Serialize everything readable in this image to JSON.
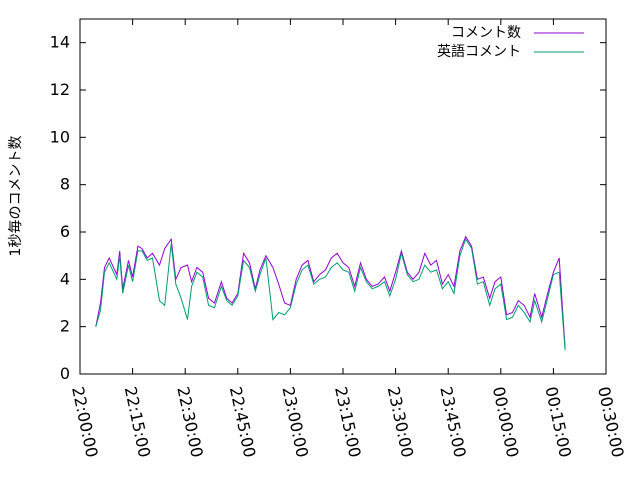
{
  "chart_data": {
    "type": "line",
    "title": "",
    "xlabel": "",
    "ylabel": "1秒毎のコメント数",
    "ylim": [
      0,
      15
    ],
    "xlim": [
      "22:00:00",
      "00:30:00"
    ],
    "y_ticks": [
      0,
      2,
      4,
      6,
      8,
      10,
      12,
      14
    ],
    "x_ticks": [
      "22:00:00",
      "22:15:00",
      "22:30:00",
      "22:45:00",
      "23:00:00",
      "23:15:00",
      "23:30:00",
      "23:45:00",
      "00:00:00",
      "00:15:00",
      "00:30:00"
    ],
    "grid": false,
    "legend_position": "top-right",
    "x": [
      "22:04:30",
      "22:05:50",
      "22:07:00",
      "22:08:20",
      "22:10:30",
      "22:11:20",
      "22:12:10",
      "22:13:50",
      "22:15:00",
      "22:16:30",
      "22:17:40",
      "22:19:10",
      "22:20:40",
      "22:22:40",
      "22:24:10",
      "22:26:00",
      "22:27:20",
      "22:28:50",
      "22:30:40",
      "22:31:50",
      "22:33:20",
      "22:35:00",
      "22:36:40",
      "22:38:20",
      "22:40:20",
      "22:41:50",
      "22:43:20",
      "22:45:00",
      "22:46:40",
      "22:48:20",
      "22:50:00",
      "22:51:20",
      "22:53:00",
      "22:55:00",
      "22:56:40",
      "22:58:20",
      "23:00:00",
      "23:01:40",
      "23:03:20",
      "23:05:00",
      "23:06:40",
      "23:08:20",
      "23:10:00",
      "23:11:40",
      "23:13:20",
      "23:15:00",
      "23:16:40",
      "23:18:20",
      "23:20:00",
      "23:21:40",
      "23:23:20",
      "23:25:00",
      "23:26:50",
      "23:28:20",
      "23:30:00",
      "23:31:40",
      "23:33:20",
      "23:35:00",
      "23:36:40",
      "23:38:20",
      "23:40:00",
      "23:41:40",
      "23:43:20",
      "23:45:00",
      "23:46:40",
      "23:48:20",
      "23:50:00",
      "23:51:40",
      "23:53:20",
      "23:55:00",
      "23:56:50",
      "23:58:20",
      "00:00:00",
      "00:01:40",
      "00:03:20",
      "00:05:00",
      "00:06:40",
      "00:08:20",
      "00:09:40",
      "00:11:40",
      "00:13:20",
      "00:15:00",
      "00:16:40",
      "00:18:20"
    ],
    "series": [
      {
        "name": "コメント数",
        "color": "#9400d3",
        "values": [
          2.0,
          3.0,
          4.5,
          4.9,
          4.2,
          5.2,
          3.6,
          4.8,
          4.1,
          5.4,
          5.3,
          4.9,
          5.1,
          4.6,
          5.3,
          5.7,
          4.0,
          4.5,
          4.6,
          3.9,
          4.5,
          4.3,
          3.2,
          3.0,
          3.9,
          3.2,
          3.0,
          3.4,
          5.1,
          4.7,
          3.6,
          4.4,
          5.0,
          4.5,
          3.8,
          3.0,
          2.9,
          4.0,
          4.6,
          4.8,
          3.9,
          4.2,
          4.4,
          4.9,
          5.1,
          4.7,
          4.5,
          3.7,
          4.7,
          4.0,
          3.7,
          3.8,
          4.1,
          3.5,
          4.3,
          5.2,
          4.3,
          4.0,
          4.3,
          5.1,
          4.6,
          4.8,
          3.8,
          4.2,
          3.7,
          5.2,
          5.8,
          5.4,
          4.0,
          4.1,
          3.2,
          3.9,
          4.1,
          2.5,
          2.6,
          3.1,
          2.9,
          2.4,
          3.4,
          2.4,
          3.4,
          4.3,
          4.9,
          1.1
        ]
      },
      {
        "name": "英語コメント",
        "color": "#009e73",
        "values": [
          2.0,
          2.7,
          4.3,
          4.7,
          4.0,
          5.0,
          3.4,
          4.6,
          3.9,
          5.2,
          5.2,
          4.8,
          4.9,
          3.1,
          2.9,
          5.5,
          3.8,
          3.2,
          2.3,
          3.7,
          4.3,
          4.1,
          2.9,
          2.8,
          3.7,
          3.1,
          2.9,
          3.3,
          4.8,
          4.5,
          3.5,
          4.2,
          4.9,
          2.3,
          2.6,
          2.5,
          2.8,
          3.8,
          4.4,
          4.6,
          3.8,
          4.0,
          4.1,
          4.5,
          4.7,
          4.4,
          4.3,
          3.5,
          4.5,
          3.9,
          3.6,
          3.7,
          3.9,
          3.3,
          4.0,
          5.1,
          4.2,
          3.9,
          4.0,
          4.6,
          4.3,
          4.4,
          3.6,
          3.9,
          3.4,
          5.0,
          5.7,
          5.3,
          3.8,
          3.9,
          2.9,
          3.6,
          3.8,
          2.3,
          2.4,
          2.9,
          2.6,
          2.2,
          3.1,
          2.2,
          3.2,
          4.2,
          4.3,
          1.0
        ]
      }
    ]
  }
}
